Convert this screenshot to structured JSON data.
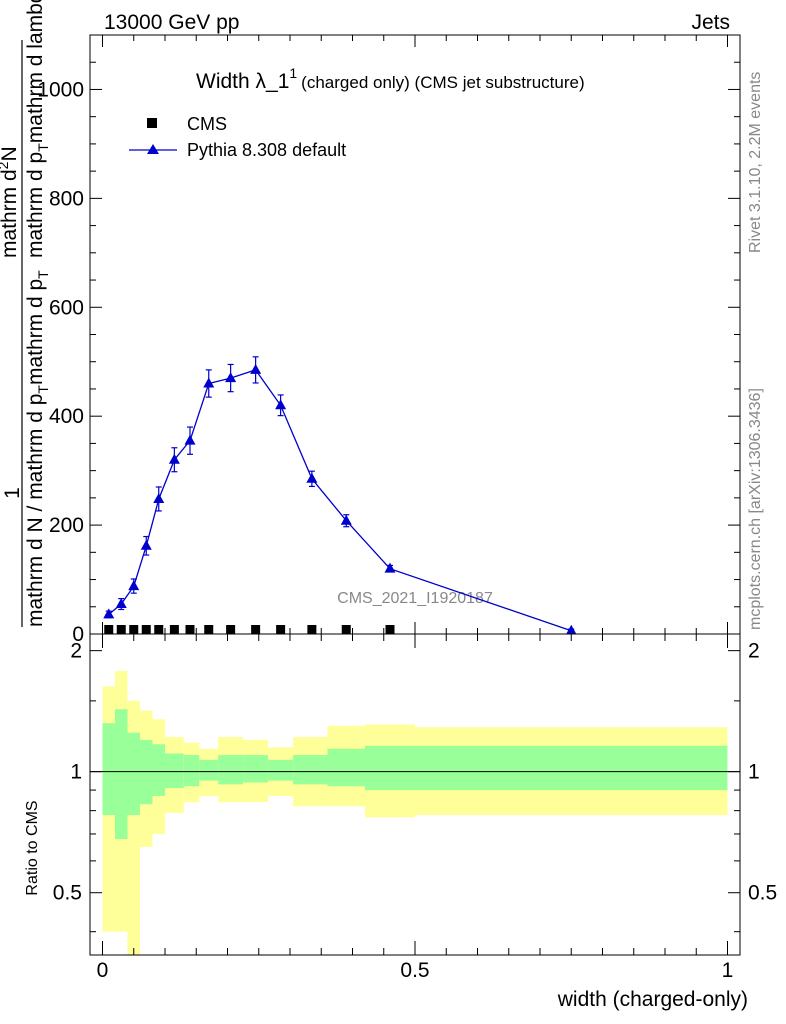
{
  "header": {
    "left": "13000 GeV pp",
    "right": "Jets"
  },
  "side": {
    "rivet": "Rivet 3.1.10,  2.2M events",
    "mcplots": "mcplots.cern.ch [arXiv:1306.3436]"
  },
  "watermark": "CMS_2021_I1920187",
  "colors": {
    "mc": "#0000cc",
    "data": "#000000",
    "band_outer": "#ffff99",
    "band_inner": "#99ff99"
  },
  "chart_data": [
    {
      "type": "line",
      "title_main": "Width λ_1",
      "title_sup": "1",
      "title_rest": "(charged only) (CMS jet substructure)",
      "ylabel_top": "1",
      "ylabel_top_frac_num": "mathrm d",
      "ylabel_top_frac_num_sup": "2",
      "ylabel_top_frac_num_rest": "N",
      "ylabel_top_frac_den": "mathrm d p",
      "ylabel_top_frac_den_sub": "T",
      "ylabel_top_frac_den_rest": "mathrm d lambda",
      "ylabel_bottom": "mathrm d N / mathrm d p",
      "ylabel_bottom_sub": "T",
      "ylabel_bottom_rest": "mathrm d p",
      "ylabel_bottom_sub2": "T",
      "ylim": [
        0,
        1100
      ],
      "yticks": [
        0,
        200,
        400,
        600,
        800,
        1000
      ],
      "ytick_labels": [
        "0",
        "200",
        "400",
        "600",
        "800",
        "1000"
      ],
      "legend": {
        "placement": "top-left",
        "data_label": "CMS",
        "mc_label": "Pythia 8.308 default"
      },
      "series": [
        {
          "name": "CMS",
          "marker": "square",
          "x": [
            0.01,
            0.03,
            0.05,
            0.07,
            0.09,
            0.115,
            0.14,
            0.17,
            0.205,
            0.245,
            0.285,
            0.335,
            0.39,
            0.46,
            0.75
          ],
          "y": [
            2,
            3,
            3,
            4,
            4,
            5,
            5,
            6,
            5,
            5,
            4,
            4,
            3,
            2,
            0
          ]
        },
        {
          "name": "Pythia 8.308 default",
          "marker": "triangle",
          "x": [
            0.01,
            0.03,
            0.05,
            0.07,
            0.09,
            0.115,
            0.14,
            0.17,
            0.205,
            0.245,
            0.285,
            0.335,
            0.39,
            0.46,
            0.75
          ],
          "y": [
            36,
            55,
            88,
            162,
            248,
            320,
            355,
            460,
            470,
            485,
            420,
            285,
            208,
            120,
            6
          ],
          "err": [
            6,
            10,
            13,
            17,
            22,
            22,
            25,
            25,
            25,
            24,
            19,
            14,
            11,
            6,
            3
          ]
        }
      ]
    },
    {
      "type": "area",
      "ylabel": "Ratio to CMS",
      "xlabel": "width (charged-only)",
      "ylim": [
        0.35,
        2.2
      ],
      "yticks": [
        0.5,
        1,
        2
      ],
      "ytick_labels": [
        "0.5",
        "1",
        "2"
      ],
      "xlim": [
        -0.02,
        1.02
      ],
      "xticks": [
        0,
        0.5,
        1
      ],
      "xtick_labels": [
        "0",
        "0.5",
        "1"
      ],
      "bins": [
        0,
        0.02,
        0.04,
        0.06,
        0.08,
        0.1,
        0.13,
        0.155,
        0.185,
        0.225,
        0.265,
        0.305,
        0.36,
        0.42,
        0.5,
        1.0
      ],
      "outer_low": [
        0.4,
        0.4,
        0.35,
        0.65,
        0.7,
        0.79,
        0.84,
        0.87,
        0.84,
        0.84,
        0.87,
        0.82,
        0.82,
        0.77,
        0.78
      ],
      "outer_high": [
        1.63,
        1.78,
        1.5,
        1.42,
        1.35,
        1.22,
        1.18,
        1.14,
        1.22,
        1.2,
        1.15,
        1.22,
        1.3,
        1.31,
        1.29
      ],
      "inner_low": [
        0.78,
        0.68,
        0.78,
        0.83,
        0.87,
        0.91,
        0.92,
        0.95,
        0.93,
        0.94,
        0.95,
        0.93,
        0.92,
        0.9,
        0.9
      ],
      "inner_high": [
        1.32,
        1.43,
        1.25,
        1.2,
        1.17,
        1.11,
        1.1,
        1.07,
        1.1,
        1.1,
        1.07,
        1.1,
        1.14,
        1.16,
        1.16
      ],
      "reference": 1
    }
  ]
}
